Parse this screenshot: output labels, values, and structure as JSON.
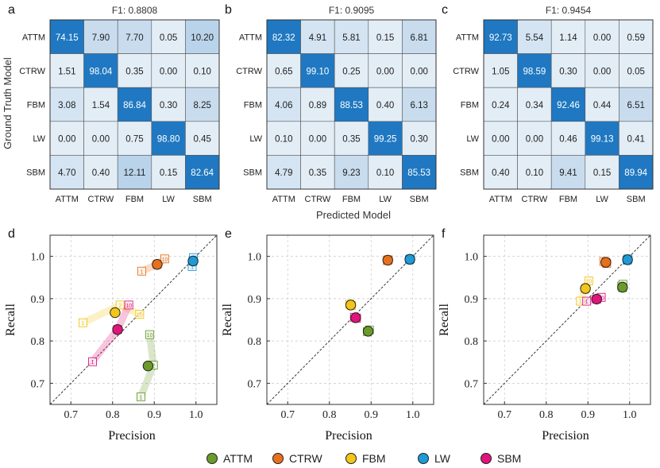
{
  "panel_letters": [
    "a",
    "b",
    "c",
    "d",
    "e",
    "f"
  ],
  "shared": {
    "confusion_ylabel": "Ground Truth Model",
    "confusion_xlabel": "Predicted Model",
    "scatter_xlabel": "Precision",
    "scatter_ylabel": "Recall"
  },
  "legend": [
    {
      "name": "ATTM",
      "color": "#6a9b2b"
    },
    {
      "name": "CTRW",
      "color": "#e8701d"
    },
    {
      "name": "FBM",
      "color": "#f2c618"
    },
    {
      "name": "LW",
      "color": "#1e9ad6"
    },
    {
      "name": "SBM",
      "color": "#e2137b"
    }
  ],
  "chart_data": [
    {
      "type": "heatmap",
      "panel": "a",
      "title": "F1: 0.8808",
      "rows": [
        "ATTM",
        "CTRW",
        "FBM",
        "LW",
        "SBM"
      ],
      "cols": [
        "ATTM",
        "CTRW",
        "FBM",
        "LW",
        "SBM"
      ],
      "values": [
        [
          74.15,
          7.9,
          7.7,
          0.05,
          10.2
        ],
        [
          1.51,
          98.04,
          0.35,
          0.0,
          0.1
        ],
        [
          3.08,
          1.54,
          86.84,
          0.3,
          8.25
        ],
        [
          0.0,
          0.0,
          0.75,
          98.8,
          0.45
        ],
        [
          4.7,
          0.4,
          12.11,
          0.15,
          82.64
        ]
      ],
      "labels": [
        [
          "74.15",
          "7.90",
          "7.70",
          "0.05",
          "10.20"
        ],
        [
          "1.51",
          "98.04",
          "0.35",
          "0.00",
          "0.10"
        ],
        [
          "3.08",
          "1.54",
          "86.84",
          "0.30",
          "8.25"
        ],
        [
          "0.00",
          "0.00",
          "0.75",
          "98.80",
          "0.45"
        ],
        [
          "4.70",
          "0.40",
          "12.11",
          "0.15",
          "82.64"
        ]
      ]
    },
    {
      "type": "heatmap",
      "panel": "b",
      "title": "F1: 0.9095",
      "rows": [
        "ATTM",
        "CTRW",
        "FBM",
        "LW",
        "SBM"
      ],
      "cols": [
        "ATTM",
        "CTRW",
        "FBM",
        "LW",
        "SBM"
      ],
      "values": [
        [
          82.32,
          4.91,
          5.81,
          0.15,
          6.81
        ],
        [
          0.65,
          99.1,
          0.25,
          0.0,
          0.0
        ],
        [
          4.06,
          0.89,
          88.53,
          0.4,
          6.13
        ],
        [
          0.1,
          0.0,
          0.35,
          99.25,
          0.3
        ],
        [
          4.79,
          0.35,
          9.23,
          0.1,
          85.53
        ]
      ],
      "labels": [
        [
          "82.32",
          "4.91",
          "5.81",
          "0.15",
          "6.81"
        ],
        [
          "0.65",
          "99.10",
          "0.25",
          "0.00",
          "0.00"
        ],
        [
          "4.06",
          "0.89",
          "88.53",
          "0.40",
          "6.13"
        ],
        [
          "0.10",
          "0.00",
          "0.35",
          "99.25",
          "0.30"
        ],
        [
          "4.79",
          "0.35",
          "9.23",
          "0.10",
          "85.53"
        ]
      ]
    },
    {
      "type": "heatmap",
      "panel": "c",
      "title": "F1: 0.9454",
      "rows": [
        "ATTM",
        "CTRW",
        "FBM",
        "LW",
        "SBM"
      ],
      "cols": [
        "ATTM",
        "CTRW",
        "FBM",
        "LW",
        "SBM"
      ],
      "values": [
        [
          92.73,
          5.54,
          1.14,
          0.0,
          0.59
        ],
        [
          1.05,
          98.59,
          0.3,
          0.0,
          0.05
        ],
        [
          0.24,
          0.34,
          92.46,
          0.44,
          6.51
        ],
        [
          0.0,
          0.0,
          0.46,
          99.13,
          0.41
        ],
        [
          0.4,
          0.1,
          9.41,
          0.15,
          89.94
        ]
      ],
      "labels": [
        [
          "92.73",
          "5.54",
          "1.14",
          "0.00",
          "0.59"
        ],
        [
          "1.05",
          "98.59",
          "0.30",
          "0.00",
          "0.05"
        ],
        [
          "0.24",
          "0.34",
          "92.46",
          "0.44",
          "6.51"
        ],
        [
          "0.00",
          "0.00",
          "0.46",
          "99.13",
          "0.41"
        ],
        [
          "0.40",
          "0.10",
          "9.41",
          "0.15",
          "89.94"
        ]
      ]
    },
    {
      "type": "scatter",
      "panel": "d",
      "xlabel": "Precision",
      "ylabel": "Recall",
      "xlim": [
        0.65,
        1.05
      ],
      "ylim": [
        0.65,
        1.05
      ],
      "xticks": [
        "0.7",
        "0.8",
        "0.9",
        "1.0"
      ],
      "yticks": [
        "0.7",
        "0.8",
        "0.9",
        "1.0"
      ],
      "grid": true,
      "diagonal": true,
      "series": [
        {
          "name": "ATTM",
          "color": "#6a9b2b",
          "mean": [
            0.885,
            0.741
          ],
          "runs": [
            {
              "label": "1",
              "x": 0.868,
              "y": 0.668
            },
            {
              "label": "2",
              "x": 0.898,
              "y": 0.743
            },
            {
              "label": "10",
              "x": 0.889,
              "y": 0.815
            }
          ]
        },
        {
          "name": "CTRW",
          "color": "#e8701d",
          "mean": [
            0.907,
            0.981
          ],
          "runs": [
            {
              "label": "1",
              "x": 0.87,
              "y": 0.965
            },
            {
              "label": "2",
              "x": 0.907,
              "y": 0.981
            },
            {
              "label": "10",
              "x": 0.925,
              "y": 0.994
            }
          ]
        },
        {
          "name": "FBM",
          "color": "#f2c618",
          "mean": [
            0.806,
            0.867
          ],
          "runs": [
            {
              "label": "1",
              "x": 0.729,
              "y": 0.843
            },
            {
              "label": "2",
              "x": 0.818,
              "y": 0.885
            },
            {
              "label": "10",
              "x": 0.865,
              "y": 0.863
            }
          ]
        },
        {
          "name": "LW",
          "color": "#1e9ad6",
          "mean": [
            0.993,
            0.989
          ],
          "runs": [
            {
              "label": "1",
              "x": 0.991,
              "y": 0.976
            },
            {
              "label": "2",
              "x": 0.993,
              "y": 0.989
            },
            {
              "label": "10",
              "x": 0.994,
              "y": 0.997
            }
          ]
        },
        {
          "name": "SBM",
          "color": "#e2137b",
          "mean": [
            0.812,
            0.827
          ],
          "runs": [
            {
              "label": "1",
              "x": 0.752,
              "y": 0.751
            },
            {
              "label": "2",
              "x": 0.812,
              "y": 0.827
            },
            {
              "label": "10",
              "x": 0.839,
              "y": 0.885
            }
          ]
        }
      ]
    },
    {
      "type": "scatter",
      "panel": "e",
      "xlabel": "Precision",
      "ylabel": "Recall",
      "xlim": [
        0.65,
        1.05
      ],
      "ylim": [
        0.65,
        1.05
      ],
      "xticks": [
        "0.7",
        "0.8",
        "0.9",
        "1.0"
      ],
      "yticks": [
        "0.7",
        "0.8",
        "0.9",
        "1.0"
      ],
      "grid": true,
      "diagonal": true,
      "series": [
        {
          "name": "ATTM",
          "color": "#6a9b2b",
          "mean": [
            0.893,
            0.823
          ],
          "runs": [
            {
              "label": "",
              "x": 0.896,
              "y": 0.826
            },
            {
              "label": "",
              "x": 0.891,
              "y": 0.822
            }
          ]
        },
        {
          "name": "CTRW",
          "color": "#e8701d",
          "mean": [
            0.94,
            0.991
          ],
          "runs": [
            {
              "label": "",
              "x": 0.941,
              "y": 0.992
            },
            {
              "label": "",
              "x": 0.939,
              "y": 0.99
            }
          ]
        },
        {
          "name": "FBM",
          "color": "#f2c618",
          "mean": [
            0.851,
            0.885
          ],
          "runs": [
            {
              "label": "",
              "x": 0.849,
              "y": 0.887
            },
            {
              "label": "",
              "x": 0.853,
              "y": 0.884
            }
          ]
        },
        {
          "name": "LW",
          "color": "#1e9ad6",
          "mean": [
            0.993,
            0.993
          ],
          "runs": [
            {
              "label": "",
              "x": 0.994,
              "y": 0.994
            },
            {
              "label": "",
              "x": 0.992,
              "y": 0.992
            }
          ]
        },
        {
          "name": "SBM",
          "color": "#e2137b",
          "mean": [
            0.863,
            0.855
          ],
          "runs": [
            {
              "label": "",
              "x": 0.86,
              "y": 0.856
            },
            {
              "label": "",
              "x": 0.865,
              "y": 0.854
            }
          ]
        }
      ]
    },
    {
      "type": "scatter",
      "panel": "f",
      "xlabel": "Precision",
      "ylabel": "Recall",
      "xlim": [
        0.65,
        1.05
      ],
      "ylim": [
        0.65,
        1.05
      ],
      "xticks": [
        "0.7",
        "0.8",
        "0.9",
        "1.0"
      ],
      "yticks": [
        "0.7",
        "0.8",
        "0.9",
        "1.0"
      ],
      "grid": true,
      "diagonal": true,
      "series": [
        {
          "name": "ATTM",
          "color": "#6a9b2b",
          "mean": [
            0.983,
            0.927
          ],
          "runs": [
            {
              "label": "1",
              "x": 0.981,
              "y": 0.93
            },
            {
              "label": "2",
              "x": 0.983,
              "y": 0.926
            },
            {
              "label": "10",
              "x": 0.984,
              "y": 0.934
            }
          ]
        },
        {
          "name": "CTRW",
          "color": "#e8701d",
          "mean": [
            0.943,
            0.986
          ],
          "runs": [
            {
              "label": "1",
              "x": 0.938,
              "y": 0.988
            },
            {
              "label": "2",
              "x": 0.943,
              "y": 0.986
            },
            {
              "label": "10",
              "x": 0.945,
              "y": 0.983
            }
          ]
        },
        {
          "name": "FBM",
          "color": "#f2c618",
          "mean": [
            0.894,
            0.924
          ],
          "runs": [
            {
              "label": "1",
              "x": 0.882,
              "y": 0.894
            },
            {
              "label": "2",
              "x": 0.894,
              "y": 0.924
            },
            {
              "label": "10",
              "x": 0.902,
              "y": 0.942
            }
          ]
        },
        {
          "name": "LW",
          "color": "#1e9ad6",
          "mean": [
            0.995,
            0.992
          ],
          "runs": [
            {
              "label": "1",
              "x": 0.994,
              "y": 0.991
            },
            {
              "label": "2",
              "x": 0.995,
              "y": 0.992
            },
            {
              "label": "10",
              "x": 0.996,
              "y": 0.994
            }
          ]
        },
        {
          "name": "SBM",
          "color": "#e2137b",
          "mean": [
            0.921,
            0.899
          ],
          "runs": [
            {
              "label": "1",
              "x": 0.897,
              "y": 0.894
            },
            {
              "label": "2",
              "x": 0.921,
              "y": 0.899
            },
            {
              "label": "10",
              "x": 0.932,
              "y": 0.903
            }
          ]
        }
      ]
    }
  ]
}
